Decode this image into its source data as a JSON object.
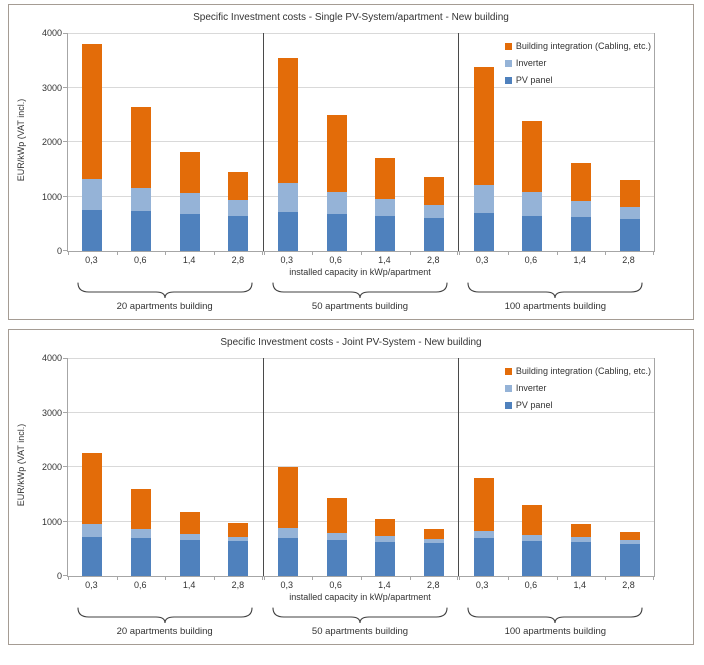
{
  "chart_data": [
    {
      "type": "bar",
      "stacked": true,
      "title": "Specific Investment costs - Single PV-System/apartment - New building",
      "ylabel": "EUR/kWp (VAT incl.)",
      "xlabel": "installed capacity in kWp/apartment",
      "ylim": [
        0,
        4000
      ],
      "yticks": [
        "4000",
        "3000",
        "2000",
        "1000",
        "0"
      ],
      "grid": "horizontal",
      "legend_position": "top-right",
      "group_labels": [
        "20 apartments building",
        "50 apartments building",
        "100 apartments building"
      ],
      "categories": [
        "0,3",
        "0,6",
        "1,4",
        "2,8"
      ],
      "series": [
        {
          "name": "PV panel",
          "color": "#4F81BD",
          "values": [
            [
              750,
              730,
              680,
              650
            ],
            [
              710,
              680,
              640,
              600
            ],
            [
              700,
              650,
              620,
              590
            ]
          ]
        },
        {
          "name": "Inverter",
          "color": "#95B3D7",
          "values": [
            [
              570,
              420,
              380,
              290
            ],
            [
              540,
              400,
              310,
              250
            ],
            [
              520,
              430,
              300,
              220
            ]
          ]
        },
        {
          "name": "Building integration (Cabling, etc.)",
          "color": "#E36C09",
          "values": [
            [
              2480,
              1500,
              760,
              510
            ],
            [
              2300,
              1420,
              750,
              500
            ],
            [
              2160,
              1300,
              700,
              490
            ]
          ]
        }
      ],
      "totals": [
        [
          3800,
          2650,
          1820,
          1450
        ],
        [
          3550,
          2500,
          1700,
          1350
        ],
        [
          3380,
          2380,
          1620,
          1300
        ]
      ]
    },
    {
      "type": "bar",
      "stacked": true,
      "title": "Specific Investment costs - Joint PV-System - New building",
      "ylabel": "EUR/kWp (VAT incl.)",
      "xlabel": "installed capacity in kWp/apartment",
      "ylim": [
        0,
        4000
      ],
      "yticks": [
        "4000",
        "3000",
        "2000",
        "1000",
        "0"
      ],
      "grid": "horizontal",
      "legend_position": "top-right",
      "group_labels": [
        "20 apartments building",
        "50 apartments building",
        "100 apartments building"
      ],
      "categories": [
        "0,3",
        "0,6",
        "1,4",
        "2,8"
      ],
      "series": [
        {
          "name": "PV panel",
          "color": "#4F81BD",
          "values": [
            [
              720,
              690,
              660,
              635
            ],
            [
              700,
              670,
              630,
              600
            ],
            [
              690,
              650,
              620,
              590
            ]
          ]
        },
        {
          "name": "Inverter",
          "color": "#95B3D7",
          "values": [
            [
              240,
              170,
              110,
              85
            ],
            [
              180,
              120,
              100,
              80
            ],
            [
              140,
              110,
              90,
              70
            ]
          ]
        },
        {
          "name": "Building integration (Cabling, etc.)",
          "color": "#E36C09",
          "values": [
            [
              1290,
              740,
              400,
              260
            ],
            [
              1120,
              640,
              320,
              190
            ],
            [
              970,
              550,
              240,
              140
            ]
          ]
        }
      ],
      "totals": [
        [
          2250,
          1600,
          1170,
          980
        ],
        [
          2000,
          1430,
          1050,
          870
        ],
        [
          1800,
          1310,
          950,
          800
        ]
      ]
    }
  ],
  "colors": {
    "building_integration": "#E36C09",
    "inverter": "#95B3D7",
    "pv_panel": "#4F81BD",
    "gridline": "#d9d9d9",
    "group_divider": "#4a4a4a",
    "axis": "#a6a6a6"
  }
}
